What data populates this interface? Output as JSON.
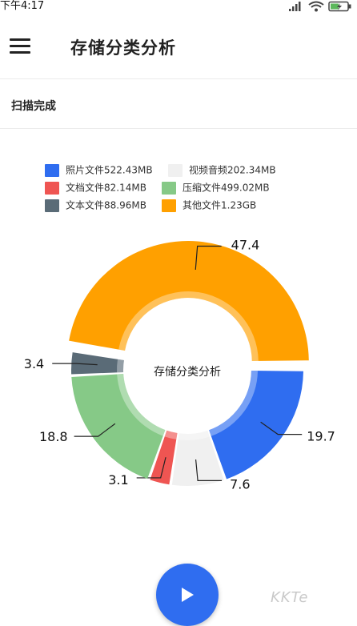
{
  "status_bar": {
    "time": "下午4:17",
    "icons": [
      "signal-icon",
      "wifi-icon",
      "battery-charging-icon"
    ]
  },
  "app_bar": {
    "title": "存储分类分析",
    "menu_icon": "menu-icon"
  },
  "scan_status": "扫描完成",
  "legend": [
    {
      "label": "照片文件522.43MB",
      "color": "#2f6df0"
    },
    {
      "label": "视频音频202.34MB",
      "color": "#f0f0f0"
    },
    {
      "label": "文档文件82.14MB",
      "color": "#ef5552"
    },
    {
      "label": "压缩文件499.02MB",
      "color": "#86c987"
    },
    {
      "label": "文本文件88.96MB",
      "color": "#5a6b77"
    },
    {
      "label": "其他文件1.23GB",
      "color": "#ffa000"
    }
  ],
  "chart_data": {
    "type": "pie",
    "style": "donut",
    "center_label": "存储分类分析",
    "slices": [
      {
        "category": "照片文件",
        "value": 19.7,
        "label": "19.7",
        "color": "#2f6df0"
      },
      {
        "category": "视频音频",
        "value": 7.6,
        "label": "7.6",
        "color": "#f0f0f0"
      },
      {
        "category": "文档文件",
        "value": 3.1,
        "label": "3.1",
        "color": "#ef5552"
      },
      {
        "category": "压缩文件",
        "value": 18.8,
        "label": "18.8",
        "color": "#86c987"
      },
      {
        "category": "文本文件",
        "value": 3.4,
        "label": "3.4",
        "color": "#5a6b77"
      },
      {
        "category": "其他文件",
        "value": 47.4,
        "label": "47.4",
        "color": "#ffa000"
      }
    ],
    "selected_slice": "其他文件"
  },
  "fab": {
    "icon": "play-icon"
  },
  "watermark": "KKTe"
}
